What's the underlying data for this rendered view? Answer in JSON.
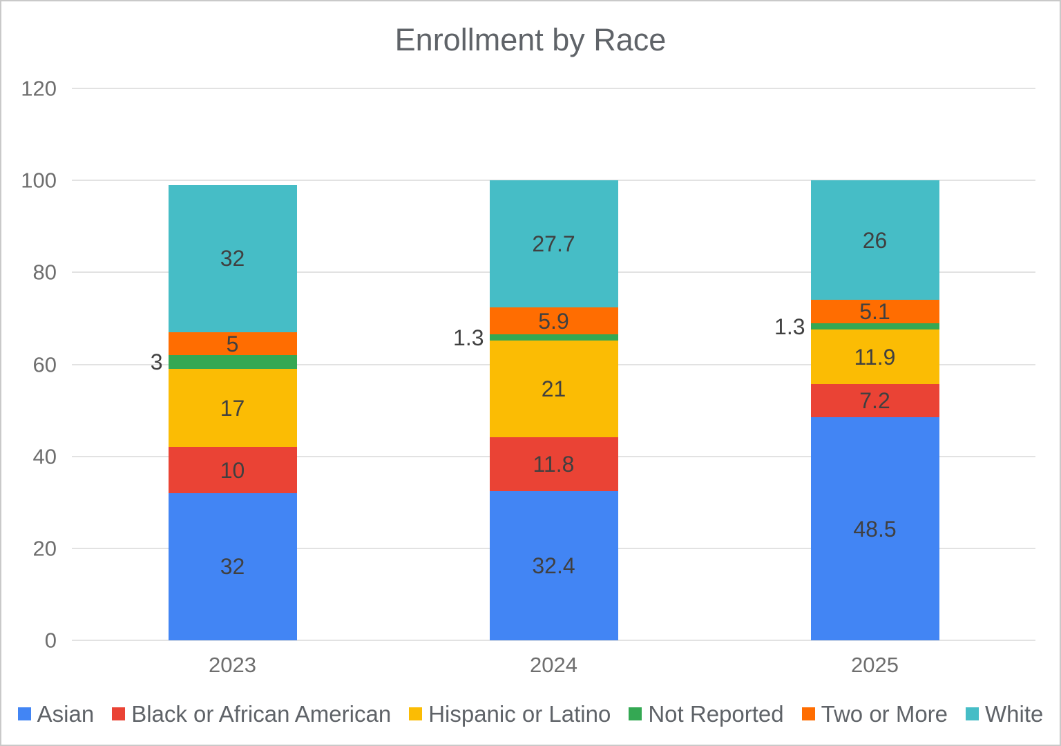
{
  "chart_data": {
    "type": "bar",
    "stacked": true,
    "title": "Enrollment by Race",
    "categories": [
      "2023",
      "2024",
      "2025"
    ],
    "series": [
      {
        "name": "Asian",
        "color": "#4285F4",
        "values": [
          32,
          32.4,
          48.5
        ]
      },
      {
        "name": "Black or African American",
        "color": "#EA4335",
        "values": [
          10,
          11.8,
          7.2
        ]
      },
      {
        "name": "Hispanic or Latino",
        "color": "#FBBC04",
        "values": [
          17,
          21,
          11.9
        ]
      },
      {
        "name": "Not Reported",
        "color": "#34A853",
        "values": [
          3,
          1.3,
          1.3
        ]
      },
      {
        "name": "Two or More",
        "color": "#FF6D01",
        "values": [
          5,
          5.9,
          5.1
        ]
      },
      {
        "name": "White",
        "color": "#46BDC6",
        "values": [
          32,
          27.7,
          26
        ]
      }
    ],
    "totals": [
      99,
      100.1,
      100
    ],
    "xlabel": "",
    "ylabel": "",
    "ylim": [
      0,
      120
    ],
    "yticks": [
      0,
      20,
      40,
      60,
      80,
      100,
      120
    ],
    "grid": true,
    "legend_position": "bottom",
    "data_labels_shown": true
  }
}
